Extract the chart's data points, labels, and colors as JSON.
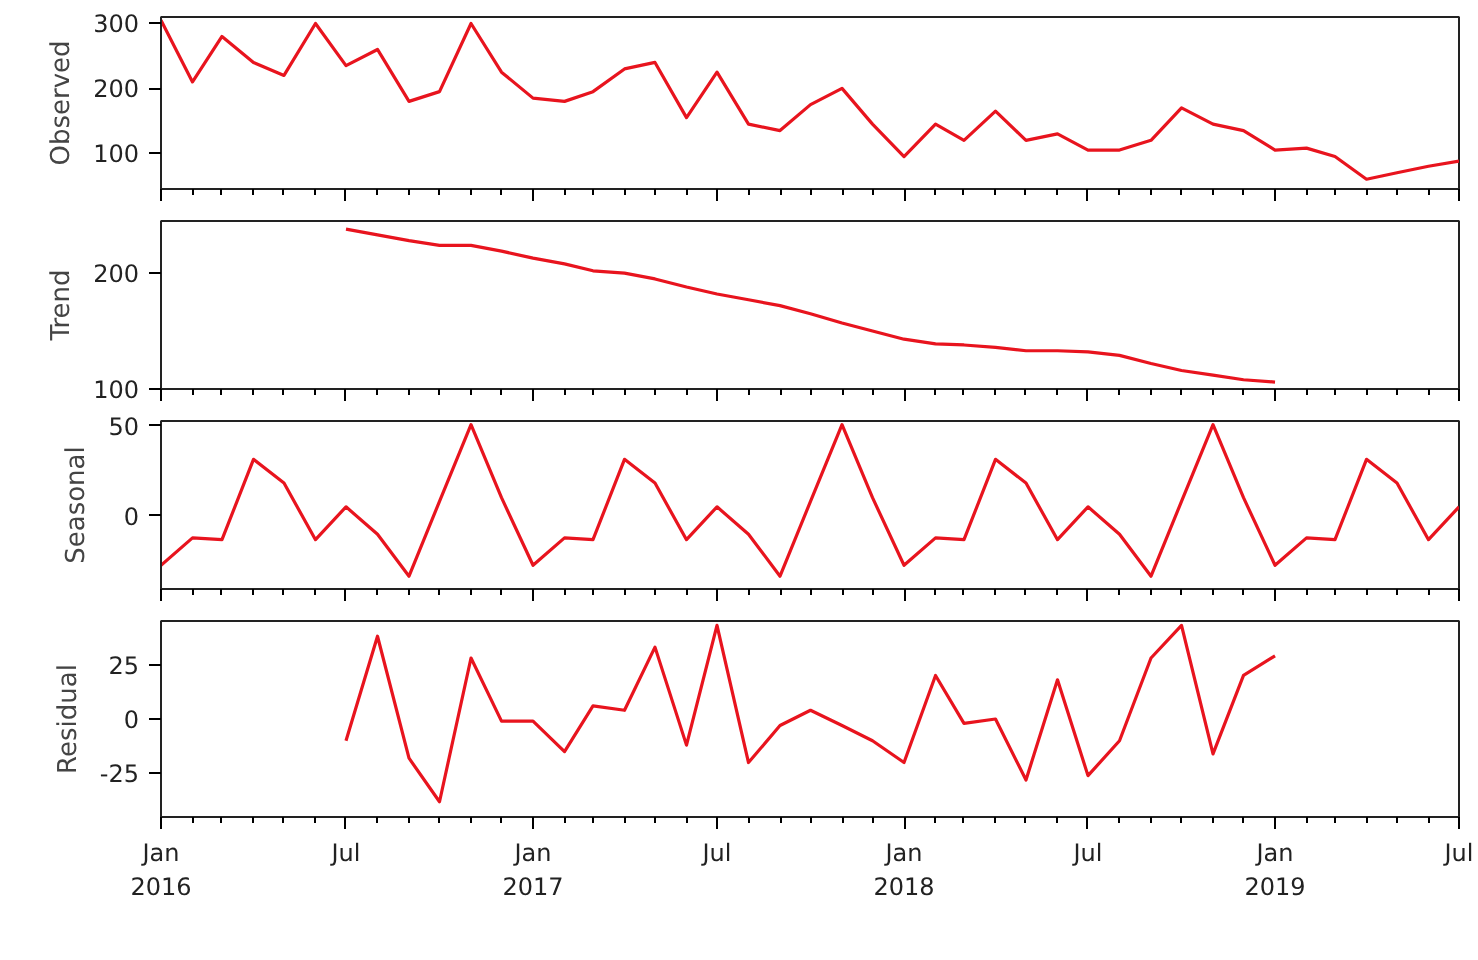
{
  "chart_data": [
    {
      "type": "line",
      "ylabel": "Observed",
      "x": [
        "2016-01",
        "2016-02",
        "2016-03",
        "2016-04",
        "2016-05",
        "2016-06",
        "2016-07",
        "2016-08",
        "2016-09",
        "2016-10",
        "2016-11",
        "2016-12",
        "2017-01",
        "2017-02",
        "2017-03",
        "2017-04",
        "2017-05",
        "2017-06",
        "2017-07",
        "2017-08",
        "2017-09",
        "2017-10",
        "2017-11",
        "2017-12",
        "2018-01",
        "2018-02",
        "2018-03",
        "2018-04",
        "2018-05",
        "2018-06",
        "2018-07",
        "2018-08",
        "2018-09",
        "2018-10",
        "2018-11",
        "2018-12",
        "2019-01",
        "2019-02",
        "2019-03",
        "2019-04",
        "2019-05",
        "2019-06",
        "2019-07"
      ],
      "series": [
        {
          "color": "#e8141e",
          "values": [
            305,
            210,
            280,
            240,
            220,
            300,
            235,
            260,
            180,
            195,
            300,
            225,
            185,
            180,
            195,
            230,
            240,
            155,
            225,
            145,
            135,
            175,
            200,
            145,
            95,
            145,
            120,
            165,
            120,
            130,
            105,
            105,
            120,
            170,
            145,
            135,
            105,
            108,
            95,
            60,
            70,
            80,
            88
          ]
        }
      ],
      "xlim": [
        "2016-01",
        "2019-07"
      ],
      "ylim": [
        45,
        310
      ],
      "yticks": [
        100,
        200,
        300
      ],
      "tick_labels": "y",
      "grid": false
    },
    {
      "type": "line",
      "ylabel": "Trend",
      "x": [
        "2016-07",
        "2016-08",
        "2016-09",
        "2016-10",
        "2016-11",
        "2016-12",
        "2017-01",
        "2017-02",
        "2017-03",
        "2017-04",
        "2017-05",
        "2017-06",
        "2017-07",
        "2017-08",
        "2017-09",
        "2017-10",
        "2017-11",
        "2017-12",
        "2018-01",
        "2018-02",
        "2018-03",
        "2018-04",
        "2018-05",
        "2018-06",
        "2018-07",
        "2018-08",
        "2018-09",
        "2018-10",
        "2018-11",
        "2018-12",
        "2019-01"
      ],
      "series": [
        {
          "color": "#e8141e",
          "values": [
            238,
            233,
            228,
            224,
            224,
            219,
            213,
            208,
            202,
            200,
            195,
            188,
            182,
            177,
            172,
            165,
            157,
            150,
            143,
            139,
            138,
            136,
            133,
            133,
            132,
            129,
            122,
            116,
            112,
            108,
            106
          ]
        }
      ],
      "xlim": [
        "2016-01",
        "2019-07"
      ],
      "ylim": [
        100,
        245
      ],
      "yticks": [
        100,
        200
      ],
      "tick_labels": "y",
      "grid": false
    },
    {
      "type": "line",
      "ylabel": "Seasonal",
      "x": [
        "2016-01",
        "2016-02",
        "2016-03",
        "2016-04",
        "2016-05",
        "2016-06",
        "2016-07",
        "2016-08",
        "2016-09",
        "2016-10",
        "2016-11",
        "2016-12",
        "2017-01",
        "2017-02",
        "2017-03",
        "2017-04",
        "2017-05",
        "2017-06",
        "2017-07",
        "2017-08",
        "2017-09",
        "2017-10",
        "2017-11",
        "2017-12",
        "2018-01",
        "2018-02",
        "2018-03",
        "2018-04",
        "2018-05",
        "2018-06",
        "2018-07",
        "2018-08",
        "2018-09",
        "2018-10",
        "2018-11",
        "2018-12",
        "2019-01",
        "2019-02",
        "2019-03",
        "2019-04",
        "2019-05",
        "2019-06",
        "2019-07"
      ],
      "series": [
        {
          "color": "#e8141e",
          "values": [
            -27,
            -12,
            -13,
            31,
            18,
            -13,
            5,
            -10,
            -33,
            8,
            50,
            10,
            -27,
            -12,
            -13,
            31,
            18,
            -13,
            5,
            -10,
            -33,
            8,
            50,
            10,
            -27,
            -12,
            -13,
            31,
            18,
            -13,
            5,
            -10,
            -33,
            8,
            50,
            10,
            -27,
            -12,
            -13,
            31,
            18,
            -13,
            5
          ]
        }
      ],
      "xlim": [
        "2016-01",
        "2019-07"
      ],
      "ylim": [
        -40,
        52
      ],
      "yticks": [
        0,
        50
      ],
      "tick_labels": "y",
      "grid": false
    },
    {
      "type": "line",
      "ylabel": "Residual",
      "x": [
        "2016-07",
        "2016-08",
        "2016-09",
        "2016-10",
        "2016-11",
        "2016-12",
        "2017-01",
        "2017-02",
        "2017-03",
        "2017-04",
        "2017-05",
        "2017-06",
        "2017-07",
        "2017-08",
        "2017-09",
        "2017-10",
        "2017-11",
        "2017-12",
        "2018-01",
        "2018-02",
        "2018-03",
        "2018-04",
        "2018-05",
        "2018-06",
        "2018-07",
        "2018-08",
        "2018-09",
        "2018-10",
        "2018-11",
        "2018-12",
        "2019-01"
      ],
      "series": [
        {
          "color": "#e8141e",
          "values": [
            -10,
            38,
            -18,
            -38,
            28,
            -1,
            -1,
            -15,
            6,
            4,
            33,
            -12,
            43,
            -20,
            -3,
            4,
            -3,
            -10,
            -20,
            20,
            -2,
            0,
            -28,
            18,
            -26,
            -10,
            28,
            43,
            -16,
            20,
            29
          ]
        }
      ],
      "xlim": [
        "2016-01",
        "2019-07"
      ],
      "xticks": [
        {
          "value": "2016-01",
          "label": "Jan\n2016"
        },
        {
          "value": "2016-07",
          "label": "Jul"
        },
        {
          "value": "2017-01",
          "label": "Jan\n2017"
        },
        {
          "value": "2017-07",
          "label": "Jul"
        },
        {
          "value": "2018-01",
          "label": "Jan\n2018"
        },
        {
          "value": "2018-07",
          "label": "Jul"
        },
        {
          "value": "2019-01",
          "label": "Jan\n2019"
        },
        {
          "value": "2019-07",
          "label": "Jul"
        }
      ],
      "ylim": [
        -45,
        45
      ],
      "yticks": [
        -25,
        0,
        25
      ],
      "grid": false
    }
  ]
}
